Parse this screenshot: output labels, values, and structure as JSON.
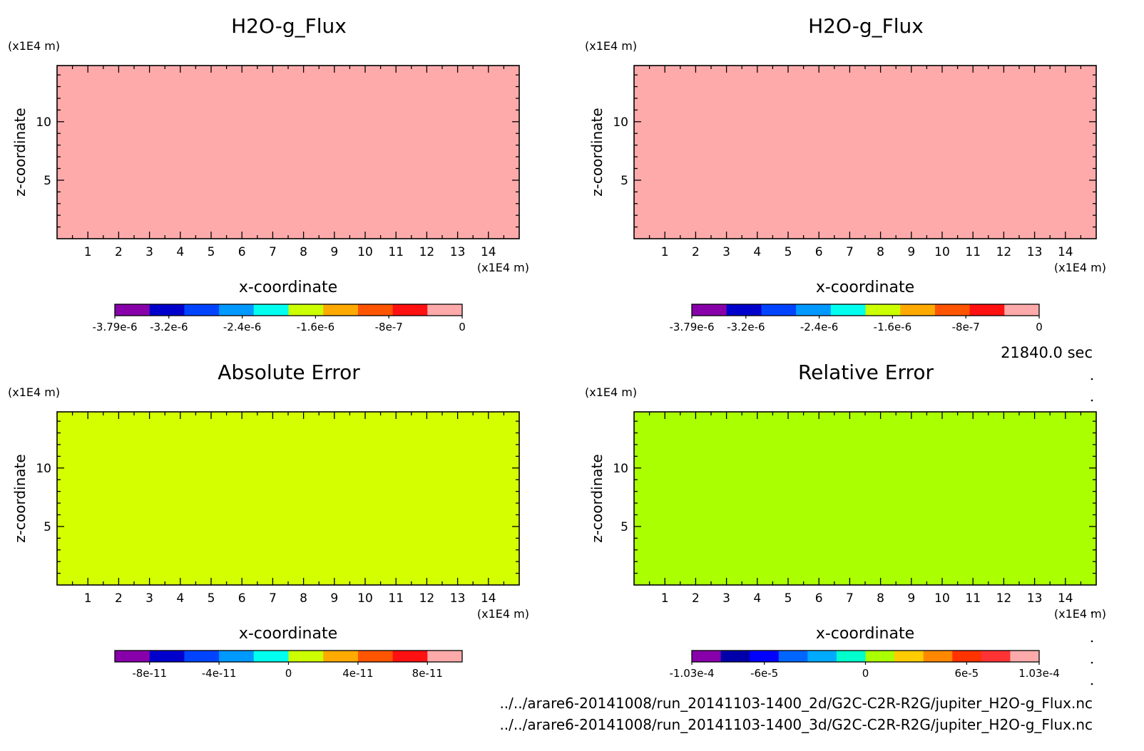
{
  "time_label": "21840.0 sec",
  "file_paths": [
    "../../arare6-20141008/run_20141103-1400_2d/G2C-C2R-R2G/jupiter_H2O-g_Flux.nc",
    "../../arare6-20141008/run_20141103-1400_3d/G2C-C2R-R2G/jupiter_H2O-g_Flux.nc"
  ],
  "colors": {
    "panel_1_fill": "#ffaaaa",
    "panel_2_fill": "#ffaaaa",
    "panel_3_fill": "#d4ff00",
    "panel_4_fill": "#aaff00"
  },
  "chart_data": [
    {
      "type": "heatmap",
      "title": "H2O-g_Flux",
      "xlabel": "x-coordinate",
      "ylabel": "z-coordinate",
      "x_unit": "(x1E4 m)",
      "y_unit": "(x1E4 m)",
      "xlim": [
        0,
        15
      ],
      "ylim": [
        0,
        14.8
      ],
      "x_ticks": [
        1,
        2,
        3,
        4,
        5,
        6,
        7,
        8,
        9,
        10,
        11,
        12,
        13,
        14
      ],
      "y_ticks": [
        5,
        10
      ],
      "field_value": 0,
      "colorbar": {
        "colors": [
          "#8800aa",
          "#0000cc",
          "#0044ff",
          "#0099ff",
          "#00ffee",
          "#ccff00",
          "#ffaa00",
          "#ff5500",
          "#ff1111",
          "#ffaaaa"
        ],
        "tick_labels": [
          "-3.79e-6",
          "-3.2e-6",
          "-2.4e-6",
          "-1.6e-6",
          "-8e-7",
          "0"
        ],
        "tick_values": [
          -3.79e-06,
          -3.2e-06,
          -2.4e-06,
          -1.6e-06,
          -8e-07,
          0
        ],
        "range": [
          -3.79e-06,
          0
        ]
      }
    },
    {
      "type": "heatmap",
      "title": "H2O-g_Flux",
      "xlabel": "x-coordinate",
      "ylabel": "z-coordinate",
      "x_unit": "(x1E4 m)",
      "y_unit": "(x1E4 m)",
      "xlim": [
        0,
        15
      ],
      "ylim": [
        0,
        14.8
      ],
      "x_ticks": [
        1,
        2,
        3,
        4,
        5,
        6,
        7,
        8,
        9,
        10,
        11,
        12,
        13,
        14
      ],
      "y_ticks": [
        5,
        10
      ],
      "field_value": 0,
      "colorbar": {
        "colors": [
          "#8800aa",
          "#0000cc",
          "#0044ff",
          "#0099ff",
          "#00ffee",
          "#ccff00",
          "#ffaa00",
          "#ff5500",
          "#ff1111",
          "#ffaaaa"
        ],
        "tick_labels": [
          "-3.79e-6",
          "-3.2e-6",
          "-2.4e-6",
          "-1.6e-6",
          "-8e-7",
          "0"
        ],
        "tick_values": [
          -3.79e-06,
          -3.2e-06,
          -2.4e-06,
          -1.6e-06,
          -8e-07,
          0
        ],
        "range": [
          -3.79e-06,
          0
        ]
      }
    },
    {
      "type": "heatmap",
      "title": "Absolute Error",
      "xlabel": "x-coordinate",
      "ylabel": "z-coordinate",
      "x_unit": "(x1E4 m)",
      "y_unit": "(x1E4 m)",
      "xlim": [
        0,
        15
      ],
      "ylim": [
        0,
        14.8
      ],
      "x_ticks": [
        1,
        2,
        3,
        4,
        5,
        6,
        7,
        8,
        9,
        10,
        11,
        12,
        13,
        14
      ],
      "y_ticks": [
        5,
        10
      ],
      "field_value": 0,
      "colorbar": {
        "colors": [
          "#8800aa",
          "#0000cc",
          "#0044ff",
          "#0099ff",
          "#00ffee",
          "#ccff00",
          "#ffaa00",
          "#ff5500",
          "#ff1111",
          "#ffaaaa"
        ],
        "tick_labels": [
          "-8e-11",
          "-4e-11",
          "0",
          "4e-11",
          "8e-11"
        ],
        "tick_values": [
          -8e-11,
          -4e-11,
          0,
          4e-11,
          8e-11
        ],
        "range": [
          -1e-10,
          1e-10
        ]
      }
    },
    {
      "type": "heatmap",
      "title": "Relative Error",
      "xlabel": "x-coordinate",
      "ylabel": "z-coordinate",
      "x_unit": "(x1E4 m)",
      "y_unit": "(x1E4 m)",
      "xlim": [
        0,
        15
      ],
      "ylim": [
        0,
        14.8
      ],
      "x_ticks": [
        1,
        2,
        3,
        4,
        5,
        6,
        7,
        8,
        9,
        10,
        11,
        12,
        13,
        14
      ],
      "y_ticks": [
        5,
        10
      ],
      "field_value": 0,
      "colorbar": {
        "colors": [
          "#8800aa",
          "#0000aa",
          "#0000ff",
          "#0066ff",
          "#00aaff",
          "#00ffcc",
          "#aaff00",
          "#ffcc00",
          "#ff8800",
          "#ff3300",
          "#ff3333",
          "#ffaaaa"
        ],
        "tick_labels": [
          "-1.03e-4",
          "-6e-5",
          "0",
          "6e-5",
          "1.03e-4"
        ],
        "tick_values": [
          -0.000103,
          -6e-05,
          0,
          6e-05,
          0.000103
        ],
        "range": [
          -0.000103,
          0.000103
        ]
      }
    }
  ]
}
